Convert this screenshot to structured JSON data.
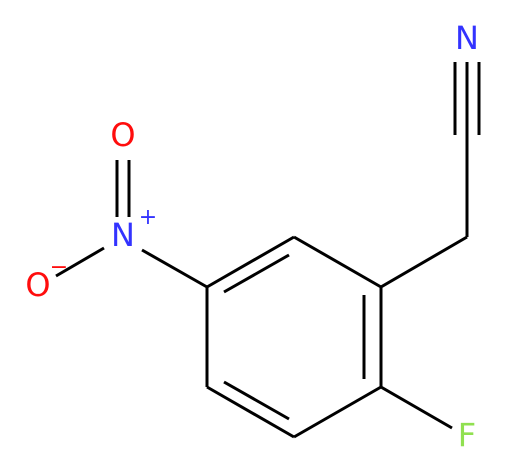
{
  "atoms": {
    "nitrile_n": "N",
    "nitro_n": "N",
    "nitro_charge": "+",
    "nitro_o": "O",
    "nitro_o_minus": "O",
    "o_charge": "−",
    "fluorine": "F"
  }
}
